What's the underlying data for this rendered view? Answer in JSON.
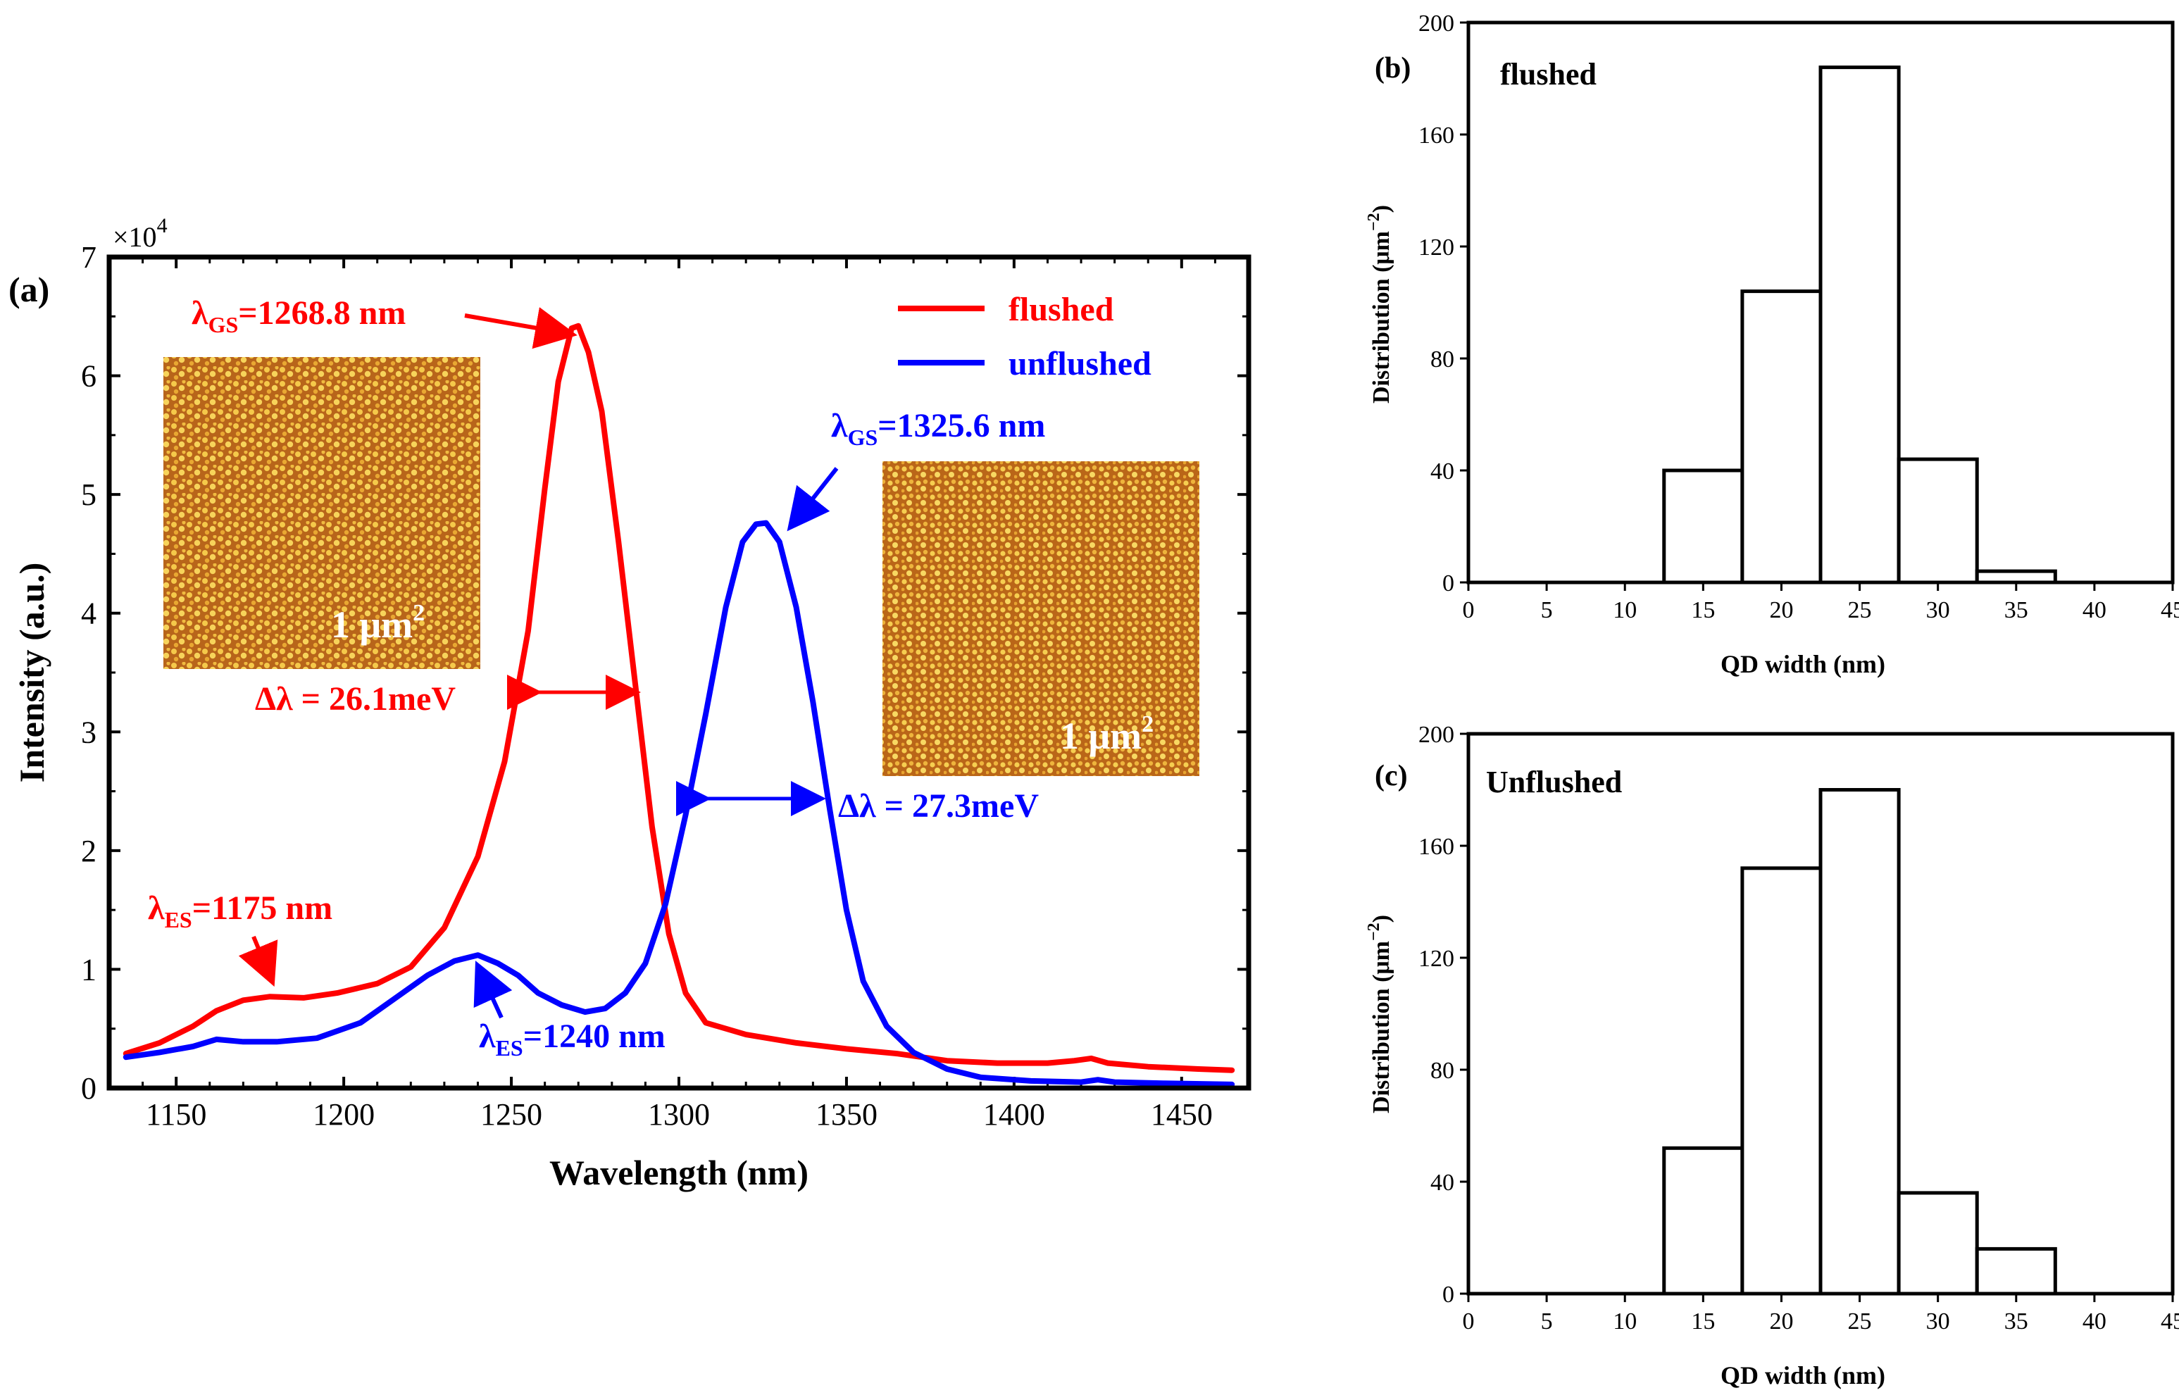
{
  "chart_data": [
    {
      "id": "a",
      "type": "line",
      "panel_label": "(a)",
      "xlabel": "Wavelength (nm)",
      "ylabel": "Intensity (a.u.)",
      "y_multiplier": "×10",
      "y_multiplier_exp": "4",
      "xlim": [
        1130,
        1470
      ],
      "ylim": [
        0,
        7
      ],
      "xticks": [
        1150,
        1200,
        1250,
        1300,
        1350,
        1400,
        1450
      ],
      "yticks": [
        0,
        1,
        2,
        3,
        4,
        5,
        6,
        7
      ],
      "legend": "top-right",
      "series": [
        {
          "name": "flushed",
          "color": "#ff0000",
          "points": [
            [
              1135,
              0.29
            ],
            [
              1145,
              0.38
            ],
            [
              1155,
              0.52
            ],
            [
              1162,
              0.65
            ],
            [
              1170,
              0.74
            ],
            [
              1178,
              0.77
            ],
            [
              1188,
              0.76
            ],
            [
              1198,
              0.8
            ],
            [
              1210,
              0.88
            ],
            [
              1220,
              1.02
            ],
            [
              1230,
              1.35
            ],
            [
              1240,
              1.95
            ],
            [
              1248,
              2.75
            ],
            [
              1255,
              3.85
            ],
            [
              1260,
              5.05
            ],
            [
              1264,
              5.95
            ],
            [
              1268,
              6.4
            ],
            [
              1270,
              6.42
            ],
            [
              1273,
              6.2
            ],
            [
              1277,
              5.7
            ],
            [
              1282,
              4.6
            ],
            [
              1287,
              3.4
            ],
            [
              1292,
              2.2
            ],
            [
              1297,
              1.3
            ],
            [
              1302,
              0.8
            ],
            [
              1308,
              0.55
            ],
            [
              1320,
              0.45
            ],
            [
              1335,
              0.38
            ],
            [
              1350,
              0.33
            ],
            [
              1365,
              0.29
            ],
            [
              1380,
              0.23
            ],
            [
              1395,
              0.21
            ],
            [
              1410,
              0.21
            ],
            [
              1418,
              0.23
            ],
            [
              1423,
              0.25
            ],
            [
              1428,
              0.21
            ],
            [
              1440,
              0.18
            ],
            [
              1455,
              0.16
            ],
            [
              1465,
              0.15
            ]
          ]
        },
        {
          "name": "unflushed",
          "color": "#0000ff",
          "points": [
            [
              1135,
              0.26
            ],
            [
              1145,
              0.3
            ],
            [
              1155,
              0.35
            ],
            [
              1162,
              0.41
            ],
            [
              1170,
              0.39
            ],
            [
              1180,
              0.39
            ],
            [
              1192,
              0.42
            ],
            [
              1205,
              0.55
            ],
            [
              1215,
              0.75
            ],
            [
              1225,
              0.95
            ],
            [
              1233,
              1.07
            ],
            [
              1240,
              1.12
            ],
            [
              1246,
              1.05
            ],
            [
              1252,
              0.95
            ],
            [
              1258,
              0.8
            ],
            [
              1265,
              0.7
            ],
            [
              1272,
              0.64
            ],
            [
              1278,
              0.67
            ],
            [
              1284,
              0.8
            ],
            [
              1290,
              1.05
            ],
            [
              1296,
              1.55
            ],
            [
              1302,
              2.3
            ],
            [
              1308,
              3.15
            ],
            [
              1314,
              4.05
            ],
            [
              1319,
              4.6
            ],
            [
              1323,
              4.75
            ],
            [
              1326,
              4.76
            ],
            [
              1330,
              4.6
            ],
            [
              1335,
              4.05
            ],
            [
              1340,
              3.25
            ],
            [
              1345,
              2.35
            ],
            [
              1350,
              1.5
            ],
            [
              1355,
              0.9
            ],
            [
              1362,
              0.52
            ],
            [
              1370,
              0.3
            ],
            [
              1380,
              0.16
            ],
            [
              1390,
              0.09
            ],
            [
              1405,
              0.06
            ],
            [
              1420,
              0.05
            ],
            [
              1425,
              0.07
            ],
            [
              1430,
              0.05
            ],
            [
              1445,
              0.04
            ],
            [
              1465,
              0.03
            ]
          ]
        }
      ],
      "annotations": {
        "red_gs_label": "λ",
        "red_gs_sub": "GS",
        "red_gs_value": "=1268.8 nm",
        "red_es_label": "λ",
        "red_es_sub": "ES",
        "red_es_value": "=1175 nm",
        "blue_gs_label": "λ",
        "blue_gs_sub": "GS",
        "blue_gs_value": "=1325.6 nm",
        "blue_es_label": "λ",
        "blue_es_sub": "ES",
        "blue_es_value": "=1240 nm",
        "red_fwhm": "Δλ = 26.1meV",
        "blue_fwhm": "Δλ = 27.3meV",
        "inset_area_text": "1 μm",
        "inset_area_exp": "2"
      }
    },
    {
      "id": "b",
      "type": "bar",
      "panel_label": "(b)",
      "sample_label": "flushed",
      "xlabel": "QD width (nm)",
      "ylabel": "Distribution (μm",
      "ylabel_exp": "−2",
      "ylabel_close": ")",
      "xlim": [
        0,
        45
      ],
      "ylim": [
        0,
        200
      ],
      "xticks": [
        0,
        5,
        10,
        15,
        20,
        25,
        30,
        35,
        40,
        45
      ],
      "yticks": [
        0,
        40,
        80,
        120,
        160,
        200
      ],
      "bin_edges": [
        12.5,
        17.5,
        22.5,
        27.5,
        32.5,
        37.5
      ],
      "values": [
        40,
        104,
        184,
        44,
        4
      ]
    },
    {
      "id": "c",
      "type": "bar",
      "panel_label": "(c)",
      "sample_label": "Unflushed",
      "xlabel": "QD width (nm)",
      "ylabel": "Distribution (μm",
      "ylabel_exp": "−2",
      "ylabel_close": ")",
      "xlim": [
        0,
        45
      ],
      "ylim": [
        0,
        200
      ],
      "xticks": [
        0,
        5,
        10,
        15,
        20,
        25,
        30,
        35,
        40,
        45
      ],
      "yticks": [
        0,
        40,
        80,
        120,
        160,
        200
      ],
      "bin_edges": [
        12.5,
        17.5,
        22.5,
        27.5,
        32.5,
        37.5
      ],
      "values": [
        52,
        152,
        180,
        36,
        16
      ]
    }
  ]
}
